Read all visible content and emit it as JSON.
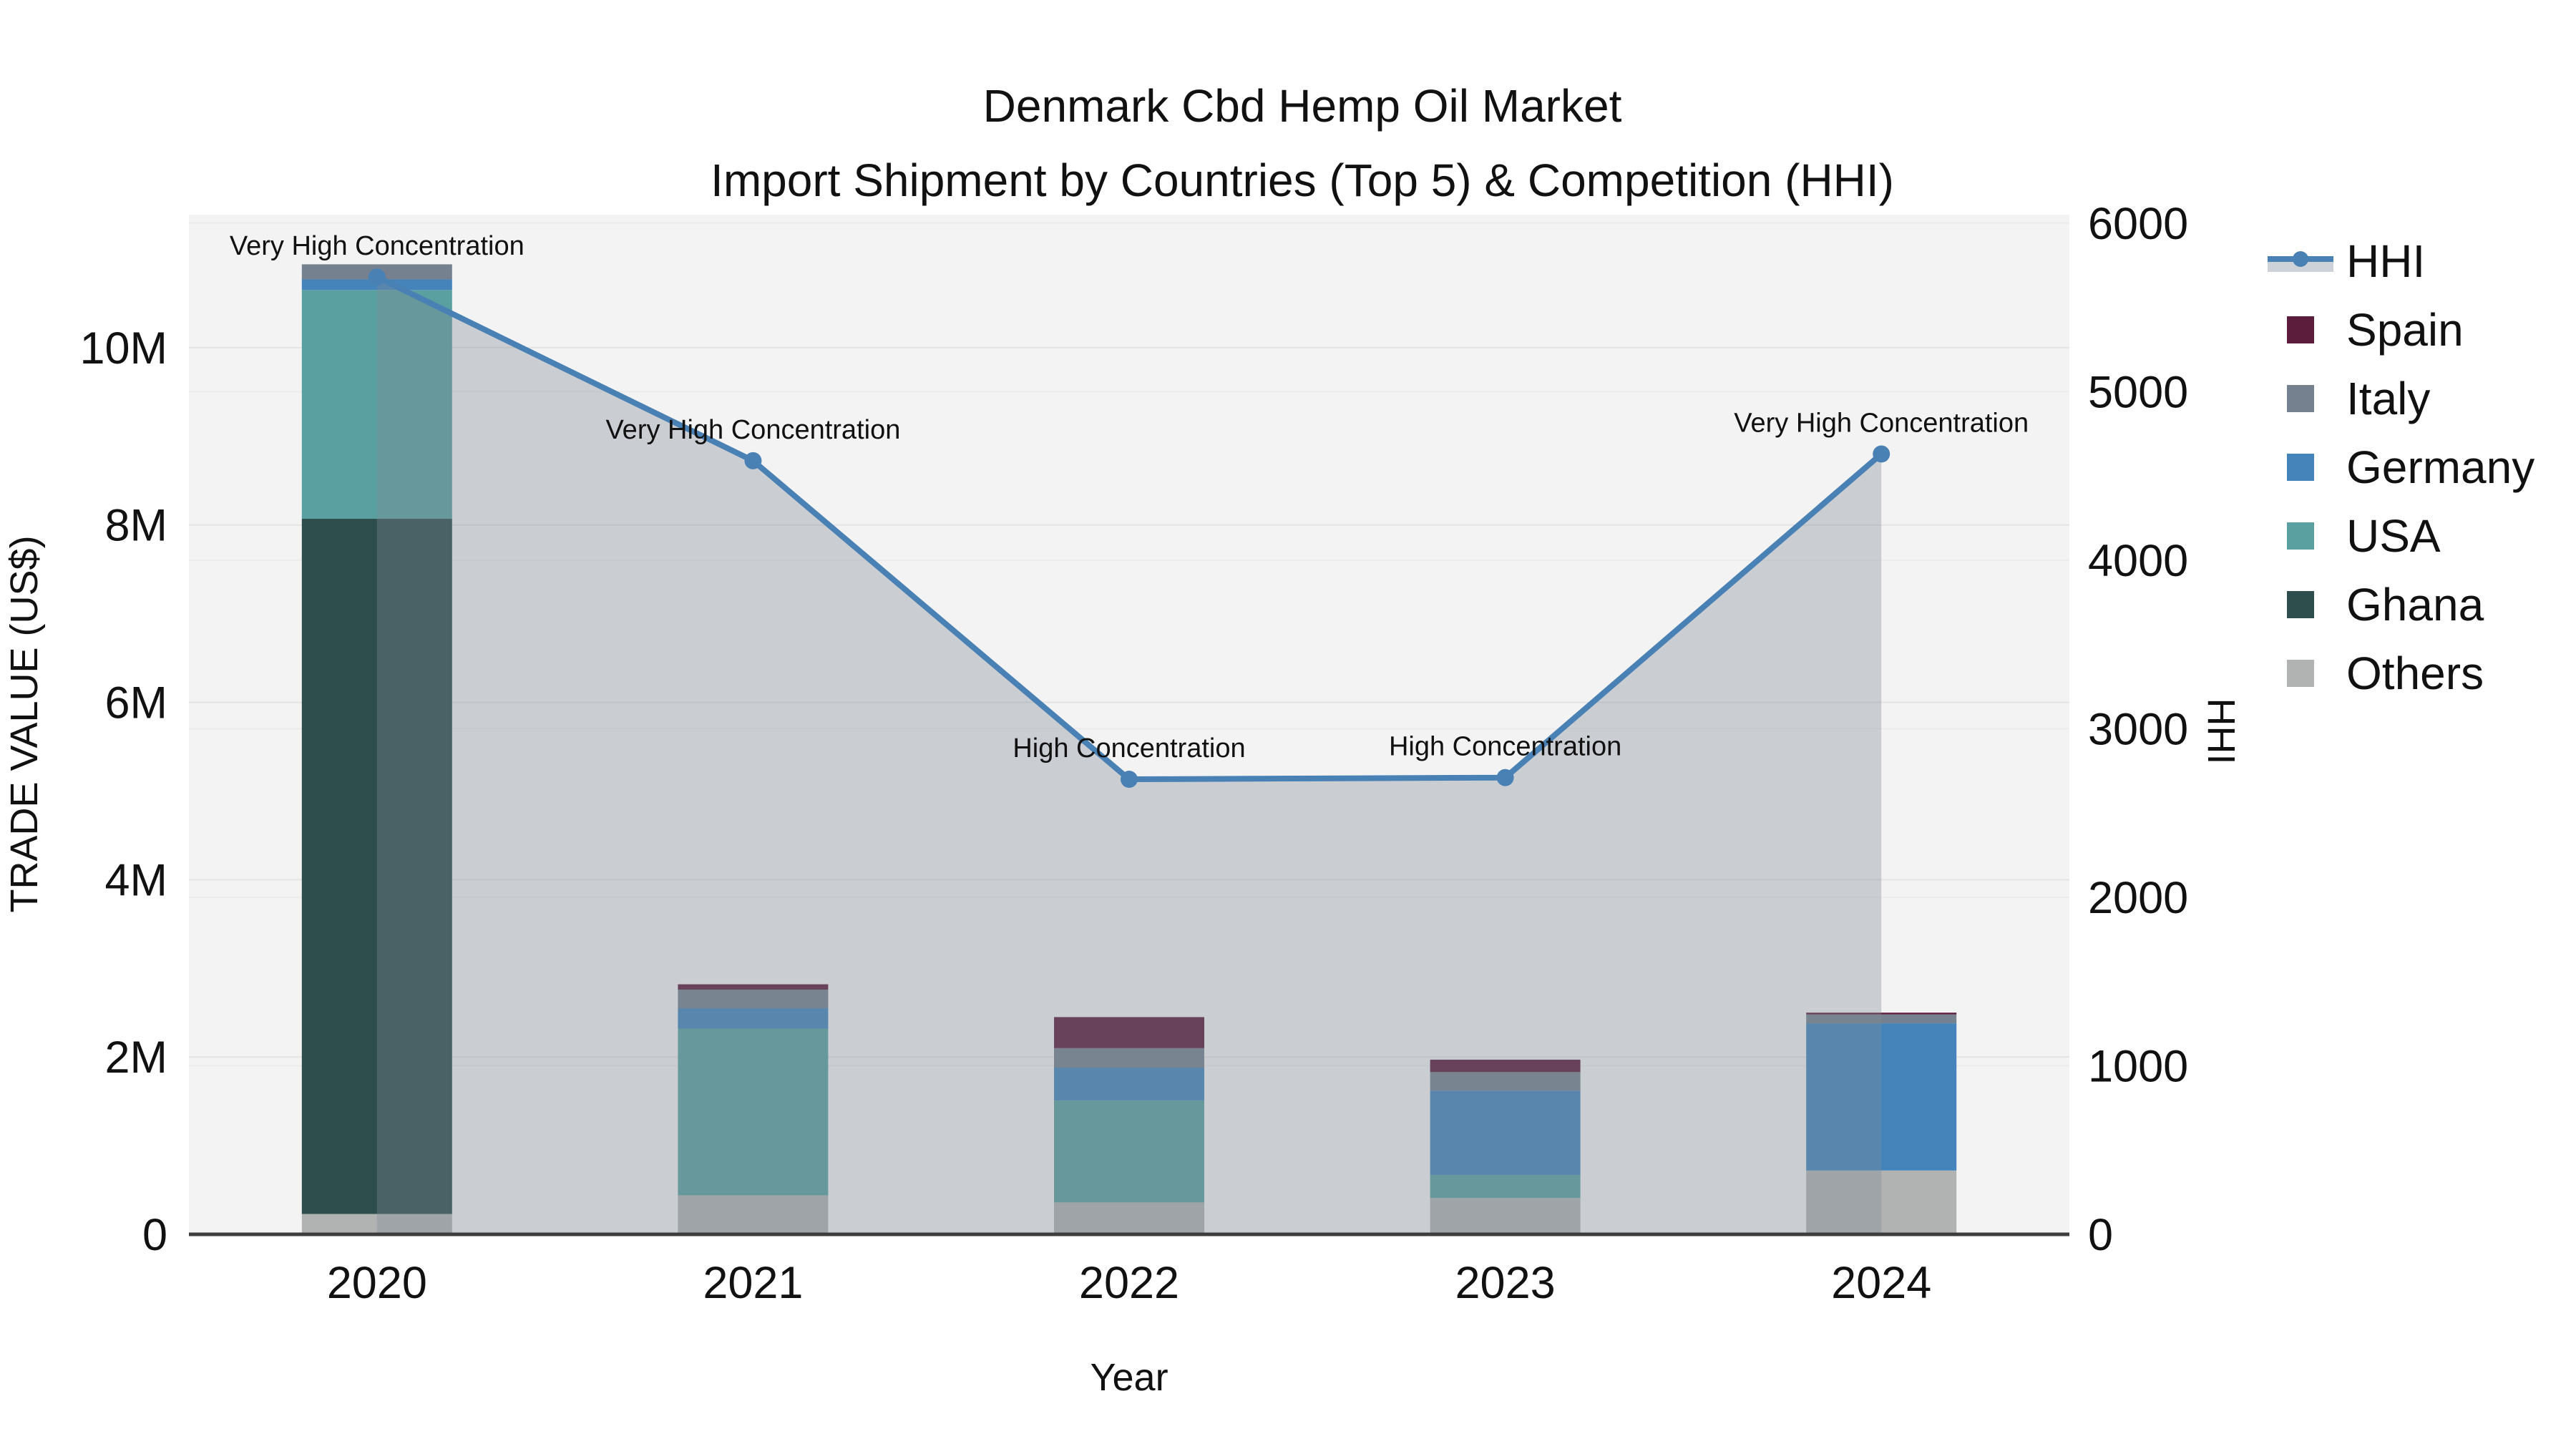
{
  "title": {
    "line1": "Denmark Cbd Hemp Oil Market",
    "line2": "Import Shipment by Countries (Top 5) & Competition (HHI)"
  },
  "axes": {
    "x": {
      "title": "Year",
      "categories": [
        "2020",
        "2021",
        "2022",
        "2023",
        "2024"
      ]
    },
    "y_left": {
      "title": "TRADE VALUE (US$)",
      "range": [
        0,
        11500000
      ],
      "ticks": [
        {
          "v": 0,
          "label": "0"
        },
        {
          "v": 2000000,
          "label": "2M"
        },
        {
          "v": 4000000,
          "label": "4M"
        },
        {
          "v": 6000000,
          "label": "6M"
        },
        {
          "v": 8000000,
          "label": "8M"
        },
        {
          "v": 10000000,
          "label": "10M"
        }
      ]
    },
    "y_right": {
      "title": "HHI",
      "range": [
        0,
        6050
      ],
      "ticks": [
        {
          "v": 0,
          "label": "0"
        },
        {
          "v": 1000,
          "label": "1000"
        },
        {
          "v": 2000,
          "label": "2000"
        },
        {
          "v": 3000,
          "label": "3000"
        },
        {
          "v": 4000,
          "label": "4000"
        },
        {
          "v": 5000,
          "label": "5000"
        },
        {
          "v": 6000,
          "label": "6000"
        }
      ]
    }
  },
  "chart_data": {
    "type": "combo: stacked bar (left axis, trade value US$) + line with markers and area fill (right axis, HHI)",
    "categories": [
      "2020",
      "2021",
      "2022",
      "2023",
      "2024"
    ],
    "stack_order_bottom_to_top": [
      "Others",
      "Ghana",
      "USA",
      "Germany",
      "Italy",
      "Spain"
    ],
    "series": [
      {
        "name": "Others",
        "color": "#b1b3b2",
        "values": [
          230000,
          440000,
          360000,
          410000,
          720000
        ]
      },
      {
        "name": "Ghana",
        "color": "#2e4e4d",
        "values": [
          7840000,
          0,
          0,
          0,
          0
        ]
      },
      {
        "name": "USA",
        "color": "#5ba0a0",
        "values": [
          2580000,
          1880000,
          1150000,
          260000,
          0
        ]
      },
      {
        "name": "Germany",
        "color": "#4484bb",
        "values": [
          120000,
          230000,
          370000,
          950000,
          1660000
        ]
      },
      {
        "name": "Italy",
        "color": "#75818e",
        "values": [
          170000,
          210000,
          220000,
          210000,
          100000
        ]
      },
      {
        "name": "Spain",
        "color": "#5c1c3c",
        "values": [
          0,
          60000,
          350000,
          140000,
          20000
        ]
      }
    ],
    "line": {
      "name": "HHI",
      "color": "#4a81b5",
      "area_fill": "rgba(125,137,150,0.35)",
      "marker_radius": 12,
      "line_width": 8,
      "values": [
        5680,
        4590,
        2700,
        2710,
        4630
      ]
    },
    "annotations": [
      {
        "category": "2020",
        "text": "Very High Concentration"
      },
      {
        "category": "2021",
        "text": "Very High Concentration"
      },
      {
        "category": "2022",
        "text": "High Concentration"
      },
      {
        "category": "2023",
        "text": "High Concentration"
      },
      {
        "category": "2024",
        "text": "Very High Concentration"
      }
    ]
  },
  "legend": {
    "items": [
      {
        "label": "HHI",
        "symbol": "line-marker",
        "color": "#4a81b5"
      },
      {
        "label": "Spain",
        "symbol": "square",
        "color": "#5c1c3c"
      },
      {
        "label": "Italy",
        "symbol": "square",
        "color": "#75818e"
      },
      {
        "label": "Germany",
        "symbol": "square",
        "color": "#4484bb"
      },
      {
        "label": "USA",
        "symbol": "square",
        "color": "#5ba0a0"
      },
      {
        "label": "Ghana",
        "symbol": "square",
        "color": "#2e4e4d"
      },
      {
        "label": "Others",
        "symbol": "square",
        "color": "#b1b3b2"
      }
    ]
  },
  "colors": {
    "background": "#ffffff",
    "plot_background": "#f3f3f3",
    "grid_left": "#e4e4e4",
    "grid_right": "#ebebeb",
    "axis_line": "#3d3d3d",
    "legend_fill_sample": "#cdd2d8",
    "text": "#111111"
  }
}
